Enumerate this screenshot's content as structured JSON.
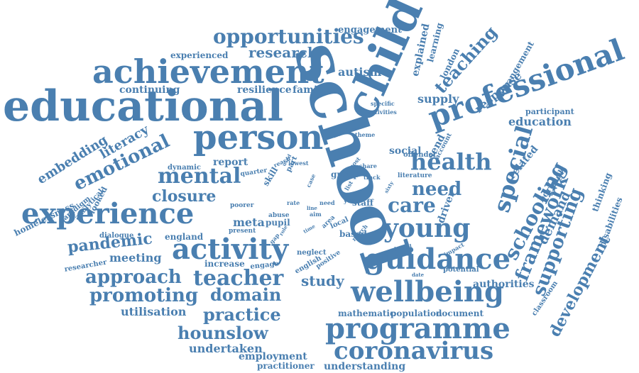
{
  "cloud": {
    "color": "#4a7fb0",
    "background": "#ffffff",
    "words": [
      "school",
      "educational",
      "child",
      "professional",
      "achievement",
      "person",
      "programme",
      "wellbeing",
      "guidance",
      "young",
      "activity",
      "experience",
      "opportunities",
      "health",
      "special",
      "care",
      "need",
      "mental",
      "emotional",
      "schooling",
      "framework",
      "supporting",
      "coronavirus",
      "teacher",
      "approach",
      "promoting",
      "domain",
      "practice",
      "hounslow",
      "development",
      "pandemic",
      "study",
      "closure",
      "research",
      "autism",
      "teaching",
      "embedding",
      "literacy",
      "meeting",
      "utilisation",
      "undertaken",
      "understanding",
      "employment",
      "practitioner",
      "engagement",
      "explained",
      "learning",
      "london",
      "arrangement",
      "response",
      "supply",
      "continuing",
      "resilience",
      "families",
      "experienced",
      "participant",
      "education",
      "related",
      "borough",
      "thinking",
      "disabilities",
      "demand",
      "authorities",
      "mathematic",
      "population",
      "document",
      "classroom",
      "homelessness",
      "paradigm",
      "analytical",
      "looked",
      "dynamic",
      "report",
      "skill",
      "social",
      "send",
      "driver",
      "staff",
      "group",
      "pupil",
      "meta",
      "england",
      "dialogue",
      "researcher",
      "increase",
      "engage",
      "neglect",
      "english",
      "positive",
      "based",
      "area",
      "local",
      "potential",
      "impact",
      "virtual",
      "march",
      "literature",
      "offender",
      "account",
      "specific",
      "activities",
      "number",
      "theme",
      "part",
      "lowest",
      "reach",
      "quarter",
      "poorer",
      "abuse",
      "present",
      "year",
      "share",
      "track",
      "rate",
      "case",
      "post",
      "list",
      "gap",
      "aim",
      "need",
      "time",
      "date",
      "sixty",
      "line",
      "used",
      "role"
    ]
  }
}
